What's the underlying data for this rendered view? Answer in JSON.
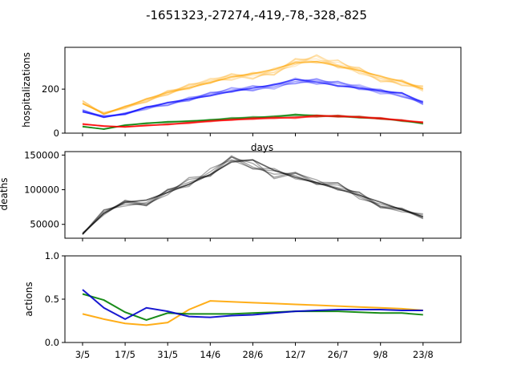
{
  "figure": {
    "title": "-1651323,-27274,-419,-78,-328,-825"
  },
  "chart_data": [
    {
      "type": "line",
      "panel": "hospitalizations",
      "title": "",
      "xlabel": "days",
      "ylabel": "hospitalizations",
      "ylim": [
        0,
        390
      ],
      "yticks": [
        0,
        200
      ],
      "x": [
        "3/5",
        "10/5",
        "17/5",
        "24/5",
        "31/5",
        "7/6",
        "14/6",
        "21/6",
        "28/6",
        "5/7",
        "12/7",
        "19/7",
        "26/7",
        "2/8",
        "9/8",
        "16/8",
        "23/8"
      ],
      "series": [
        {
          "color": "#ffa500",
          "values": [
            135,
            88,
            120,
            155,
            185,
            205,
            230,
            255,
            270,
            290,
            320,
            325,
            305,
            285,
            258,
            235,
            200
          ]
        },
        {
          "color": "#0000ff",
          "values": [
            98,
            72,
            88,
            118,
            138,
            155,
            170,
            190,
            205,
            220,
            245,
            232,
            215,
            205,
            192,
            182,
            140
          ]
        },
        {
          "color": "#008000",
          "values": [
            30,
            18,
            35,
            45,
            52,
            55,
            60,
            65,
            70,
            76,
            85,
            80,
            76,
            70,
            66,
            58,
            45
          ]
        },
        {
          "color": "#ff0000",
          "values": [
            42,
            32,
            28,
            34,
            40,
            48,
            55,
            60,
            64,
            68,
            72,
            80,
            78,
            72,
            65,
            58,
            50
          ]
        }
      ]
    },
    {
      "type": "line",
      "panel": "deaths",
      "title": "",
      "xlabel": "",
      "ylabel": "deaths",
      "ylim": [
        30000,
        155000
      ],
      "yticks": [
        50000,
        100000,
        150000
      ],
      "x": [
        "3/5",
        "10/5",
        "17/5",
        "24/5",
        "31/5",
        "7/6",
        "14/6",
        "21/6",
        "28/6",
        "5/7",
        "12/7",
        "19/7",
        "26/7",
        "2/8",
        "9/8",
        "16/8",
        "23/8"
      ],
      "series": [
        {
          "color": "#000000",
          "values": [
            36000,
            66000,
            82000,
            85000,
            96000,
            108000,
            122000,
            140000,
            143000,
            128000,
            118000,
            110000,
            101000,
            92000,
            82000,
            71000,
            61000
          ]
        }
      ]
    },
    {
      "type": "line",
      "panel": "actions",
      "title": "",
      "xlabel": "",
      "ylabel": "actions",
      "ylim": [
        0.0,
        1.0
      ],
      "yticks": [
        "0.0",
        "0.5",
        "1.0"
      ],
      "x": [
        "3/5",
        "10/5",
        "17/5",
        "24/5",
        "31/5",
        "7/6",
        "14/6",
        "21/6",
        "28/6",
        "5/7",
        "12/7",
        "19/7",
        "26/7",
        "2/8",
        "9/8",
        "16/8",
        "23/8"
      ],
      "xticklabels": [
        "3/5",
        "17/5",
        "31/5",
        "14/6",
        "28/6",
        "12/7",
        "26/7",
        "9/8",
        "23/8"
      ],
      "series": [
        {
          "color": "#ffa500",
          "values": [
            0.33,
            0.27,
            0.22,
            0.2,
            0.23,
            0.38,
            0.48,
            0.47,
            0.46,
            0.45,
            0.44,
            0.43,
            0.42,
            0.41,
            0.4,
            0.39,
            0.37
          ]
        },
        {
          "color": "#008000",
          "values": [
            0.56,
            0.49,
            0.35,
            0.26,
            0.34,
            0.33,
            0.33,
            0.33,
            0.34,
            0.35,
            0.36,
            0.36,
            0.36,
            0.35,
            0.34,
            0.34,
            0.32
          ]
        },
        {
          "color": "#0000cc",
          "values": [
            0.61,
            0.4,
            0.27,
            0.4,
            0.36,
            0.3,
            0.29,
            0.31,
            0.32,
            0.34,
            0.36,
            0.37,
            0.38,
            0.38,
            0.38,
            0.37,
            0.37
          ]
        }
      ]
    }
  ]
}
